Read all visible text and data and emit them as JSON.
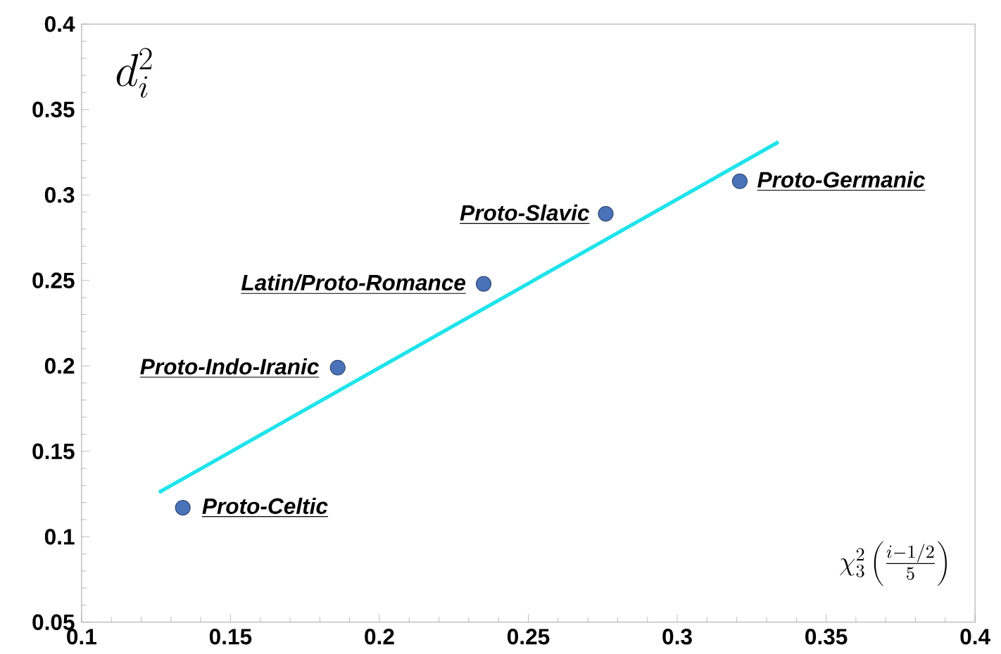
{
  "chart_data": {
    "type": "scatter",
    "xlabel": "\\chi_3^2\\left(\\frac{i-1/2}{5}\\right)",
    "ylabel": "d_i^2",
    "series": [
      {
        "color": "#4a72b8",
        "marker": "circle",
        "x": [
          0.134,
          0.186,
          0.235,
          0.276,
          0.321
        ],
        "values": [
          0.117,
          0.199,
          0.248,
          0.289,
          0.308
        ]
      },
      {
        "type": "line",
        "color": "#1fe3ea",
        "marker": "none",
        "x": [
          0.126,
          0.334
        ],
        "values": [
          0.126,
          0.331
        ]
      }
    ],
    "annotations": [
      {
        "text": "Proto-Celtic",
        "x": 0.1345,
        "y": 0.117
      },
      {
        "text": "Proto-Indo-Iranic",
        "x": 0.1857,
        "y": 0.1986
      },
      {
        "text": "Latin/Proto-Romance",
        "x": 0.235,
        "y": 0.2477
      },
      {
        "text": "Proto-Slavic",
        "x": 0.2765,
        "y": 0.2886
      },
      {
        "text": "Proto-Germanic",
        "x": 0.3209,
        "y": 0.308
      }
    ],
    "xlim": [
      0.1,
      0.4
    ],
    "ylim": [
      0.05,
      0.4
    ],
    "xticks": [
      0.1,
      0.15,
      0.2,
      0.25,
      0.3,
      0.35,
      0.4
    ],
    "yticks": [
      0.05,
      0.1,
      0.15,
      0.2,
      0.25,
      0.3,
      0.35,
      0.4
    ]
  }
}
